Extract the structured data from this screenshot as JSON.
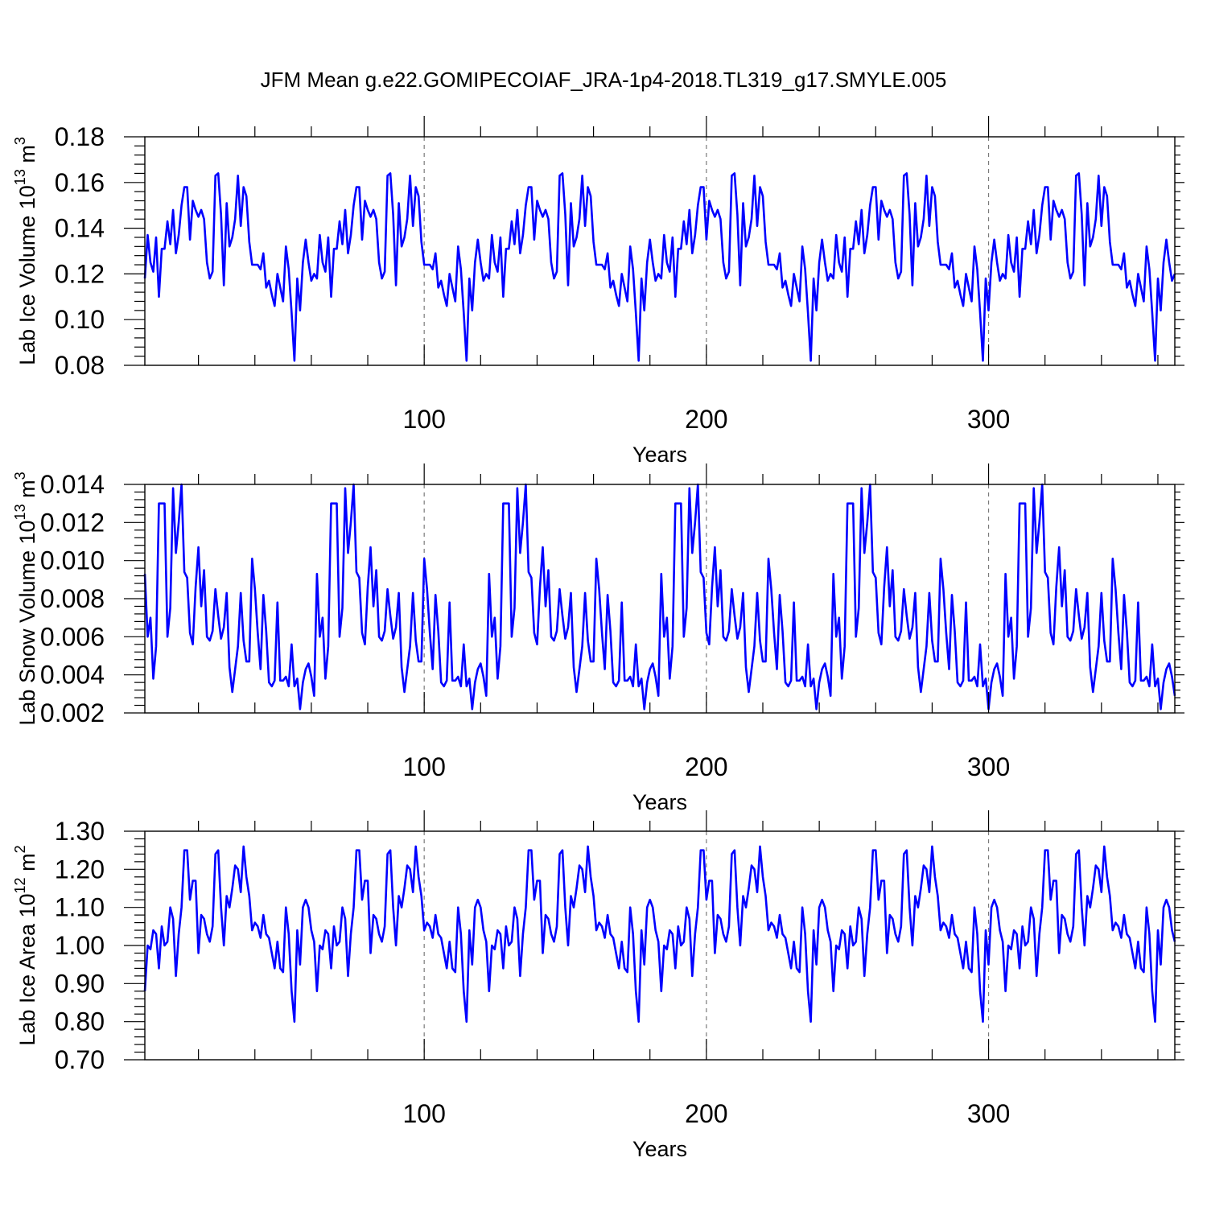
{
  "title": "JFM Mean g.e22.GOMIPECOIAF_JRA-1p4-2018.TL319_g17.SMYLE.005",
  "line_color": "#0000ff",
  "chart_data": [
    {
      "type": "line",
      "name": "ice-volume",
      "ylabel_main": "Lab Ice Volume 10",
      "ylabel_exp": "13",
      "ylabel_unit": " m",
      "ylabel_unit_exp": "3",
      "xlabel": "Years",
      "xlim": [
        1,
        366
      ],
      "ylim": [
        0.08,
        0.18
      ],
      "yticks": [
        "0.08",
        "0.10",
        "0.12",
        "0.14",
        "0.16",
        "0.18"
      ],
      "xticks": [
        "100",
        "200",
        "300"
      ],
      "reference_x": [
        100,
        200,
        300
      ],
      "cycle_length": 61,
      "values": [
        0.118,
        0.137,
        0.125,
        0.121,
        0.136,
        0.11,
        0.131,
        0.131,
        0.143,
        0.133,
        0.148,
        0.129,
        0.137,
        0.15,
        0.158,
        0.158,
        0.135,
        0.152,
        0.148,
        0.145,
        0.148,
        0.144,
        0.125,
        0.118,
        0.121,
        0.163,
        0.164,
        0.146,
        0.115,
        0.151,
        0.132,
        0.136,
        0.144,
        0.163,
        0.141,
        0.158,
        0.154,
        0.134,
        0.124,
        0.124,
        0.124,
        0.122,
        0.129,
        0.114,
        0.117,
        0.111,
        0.106,
        0.12,
        0.114,
        0.108,
        0.132,
        0.122,
        0.103,
        0.082,
        0.118,
        0.104,
        0.125,
        0.135,
        0.125,
        0.117,
        0.12
      ]
    },
    {
      "type": "line",
      "name": "snow-volume",
      "ylabel_main": "Lab Snow Volume 10",
      "ylabel_exp": "13",
      "ylabel_unit": " m",
      "ylabel_unit_exp": "3",
      "xlabel": "Years",
      "xlim": [
        1,
        366
      ],
      "ylim": [
        0.002,
        0.014
      ],
      "yticks": [
        "0.002",
        "0.004",
        "0.006",
        "0.008",
        "0.010",
        "0.012",
        "0.014"
      ],
      "xticks": [
        "100",
        "200",
        "300"
      ],
      "reference_x": [
        100,
        200,
        300
      ],
      "cycle_length": 61,
      "values": [
        0.0093,
        0.006,
        0.007,
        0.0038,
        0.0055,
        0.013,
        0.013,
        0.013,
        0.006,
        0.0075,
        0.0138,
        0.0104,
        0.012,
        0.014,
        0.0094,
        0.0091,
        0.0062,
        0.0056,
        0.0086,
        0.0107,
        0.0076,
        0.0095,
        0.006,
        0.0058,
        0.0063,
        0.0085,
        0.0071,
        0.0059,
        0.0065,
        0.0083,
        0.0044,
        0.0031,
        0.0043,
        0.0055,
        0.0083,
        0.0058,
        0.0047,
        0.0047,
        0.0101,
        0.0085,
        0.0062,
        0.0043,
        0.0082,
        0.0063,
        0.0036,
        0.0034,
        0.0037,
        0.0078,
        0.0037,
        0.0037,
        0.0039,
        0.0034,
        0.0056,
        0.0034,
        0.0038,
        0.0022,
        0.0036,
        0.0043,
        0.0046,
        0.0039,
        0.0029
      ]
    },
    {
      "type": "line",
      "name": "ice-area",
      "ylabel_main": "Lab Ice Area 10",
      "ylabel_exp": "12",
      "ylabel_unit": " m",
      "ylabel_unit_exp": "2",
      "xlabel": "Years",
      "xlim": [
        1,
        366
      ],
      "ylim": [
        0.7,
        1.3
      ],
      "yticks": [
        "0.70",
        "0.80",
        "0.90",
        "1.00",
        "1.10",
        "1.20",
        "1.30"
      ],
      "xticks": [
        "100",
        "200",
        "300"
      ],
      "reference_x": [
        100,
        200,
        300
      ],
      "cycle_length": 61,
      "values": [
        0.88,
        1.0,
        0.99,
        1.04,
        1.03,
        0.94,
        1.05,
        1.0,
        1.01,
        1.1,
        1.07,
        0.92,
        1.03,
        1.1,
        1.25,
        1.25,
        1.12,
        1.17,
        1.17,
        0.98,
        1.08,
        1.07,
        1.03,
        1.01,
        1.05,
        1.24,
        1.25,
        1.1,
        1.0,
        1.13,
        1.1,
        1.15,
        1.21,
        1.2,
        1.14,
        1.26,
        1.18,
        1.13,
        1.04,
        1.06,
        1.05,
        1.02,
        1.08,
        1.03,
        1.02,
        0.98,
        0.94,
        1.01,
        0.94,
        0.93,
        1.1,
        1.03,
        0.88,
        0.8,
        1.04,
        0.95,
        1.1,
        1.12,
        1.1,
        1.04,
        1.01
      ]
    }
  ]
}
